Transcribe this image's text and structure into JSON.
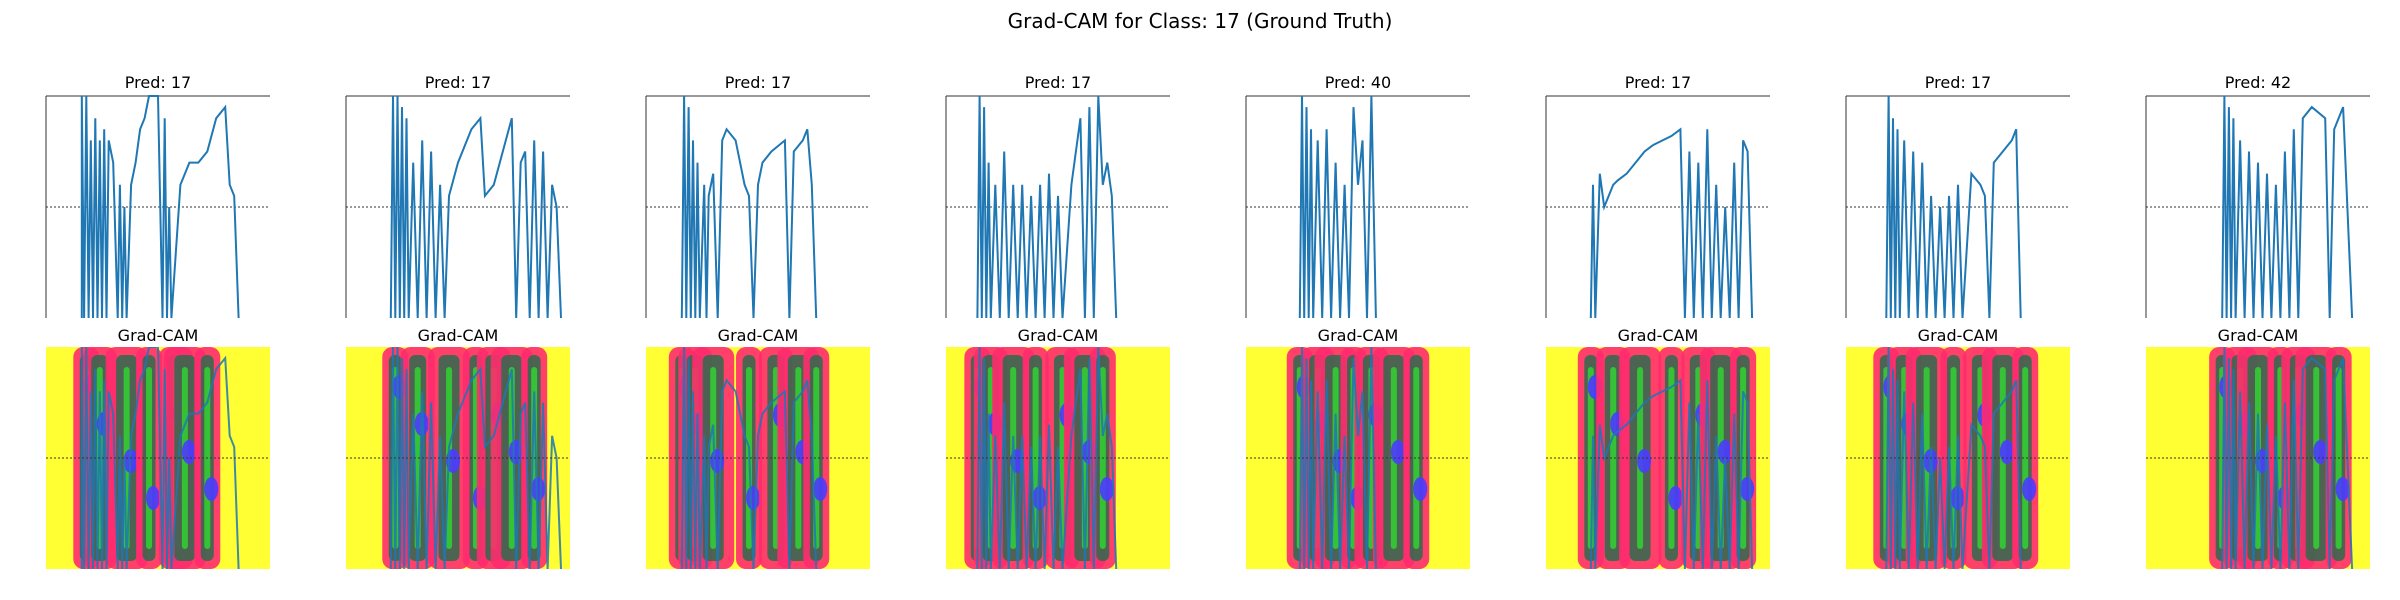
{
  "title": "Grad-CAM for Class: 17 (Ground Truth)",
  "gradcam_label": "Grad-CAM",
  "colors": {
    "signal": "#1f77b4",
    "threshold_line": "#333333",
    "heatmap_low": "#ffff33",
    "heatmap_mid": "#ff2b6e",
    "heatmap_dark": "#2e6b4f",
    "heatmap_green": "#33cc33",
    "heatmap_high": "#4b3bff"
  },
  "chart_data": {
    "type": "line",
    "title": "Grad-CAM for Class: 17 (Ground Truth)",
    "ground_truth_class": 17,
    "reference_line_y": 0.5,
    "ylim": [
      0,
      1
    ],
    "xlim": [
      0,
      1
    ],
    "axes_visible": false,
    "panels": [
      {
        "pred_label": "Pred: 17",
        "signal": [
          [
            0.16,
            0
          ],
          [
            0.16,
            1.0
          ],
          [
            0.17,
            0
          ],
          [
            0.18,
            1.0
          ],
          [
            0.19,
            0
          ],
          [
            0.2,
            0.8
          ],
          [
            0.21,
            0
          ],
          [
            0.22,
            0.9
          ],
          [
            0.23,
            0
          ],
          [
            0.24,
            0.8
          ],
          [
            0.25,
            0
          ],
          [
            0.26,
            0.85
          ],
          [
            0.27,
            0
          ],
          [
            0.28,
            0.8
          ],
          [
            0.3,
            0.7
          ],
          [
            0.32,
            0
          ],
          [
            0.33,
            0.6
          ],
          [
            0.34,
            0
          ],
          [
            0.35,
            0.5
          ],
          [
            0.36,
            0
          ],
          [
            0.38,
            0.6
          ],
          [
            0.4,
            0.7
          ],
          [
            0.42,
            0.85
          ],
          [
            0.44,
            0.9
          ],
          [
            0.46,
            1.0
          ],
          [
            0.5,
            1.0
          ],
          [
            0.52,
            0
          ],
          [
            0.53,
            0.9
          ],
          [
            0.54,
            0
          ],
          [
            0.55,
            0.5
          ],
          [
            0.56,
            0
          ],
          [
            0.6,
            0.6
          ],
          [
            0.62,
            0.65
          ],
          [
            0.64,
            0.7
          ],
          [
            0.66,
            0.7
          ],
          [
            0.68,
            0.7
          ],
          [
            0.72,
            0.75
          ],
          [
            0.76,
            0.9
          ],
          [
            0.8,
            0.95
          ],
          [
            0.82,
            0.6
          ],
          [
            0.84,
            0.55
          ],
          [
            0.86,
            0
          ]
        ],
        "heat_bands": [
          0.18,
          0.24,
          0.36,
          0.46,
          0.58,
          0.62,
          0.72
        ]
      },
      {
        "pred_label": "Pred: 17",
        "signal": [
          [
            0.2,
            0
          ],
          [
            0.21,
            1.0
          ],
          [
            0.22,
            0
          ],
          [
            0.23,
            1.0
          ],
          [
            0.24,
            0
          ],
          [
            0.25,
            0.95
          ],
          [
            0.26,
            0
          ],
          [
            0.27,
            0.9
          ],
          [
            0.28,
            0
          ],
          [
            0.3,
            0.7
          ],
          [
            0.32,
            0
          ],
          [
            0.34,
            0.8
          ],
          [
            0.36,
            0
          ],
          [
            0.38,
            0.75
          ],
          [
            0.4,
            0
          ],
          [
            0.42,
            0.6
          ],
          [
            0.44,
            0
          ],
          [
            0.46,
            0.55
          ],
          [
            0.5,
            0.7
          ],
          [
            0.56,
            0.85
          ],
          [
            0.6,
            0.9
          ],
          [
            0.62,
            0.55
          ],
          [
            0.66,
            0.6
          ],
          [
            0.7,
            0.75
          ],
          [
            0.74,
            0.9
          ],
          [
            0.76,
            0
          ],
          [
            0.78,
            0.7
          ],
          [
            0.8,
            0.75
          ],
          [
            0.82,
            0
          ],
          [
            0.84,
            0.8
          ],
          [
            0.86,
            0
          ],
          [
            0.88,
            0.75
          ],
          [
            0.9,
            0
          ],
          [
            0.92,
            0.6
          ],
          [
            0.94,
            0.5
          ],
          [
            0.96,
            0
          ]
        ],
        "heat_bands": [
          0.22,
          0.32,
          0.46,
          0.58,
          0.66,
          0.74,
          0.84
        ]
      },
      {
        "pred_label": "Pred: 17",
        "signal": [
          [
            0.16,
            0
          ],
          [
            0.17,
            1.0
          ],
          [
            0.18,
            0
          ],
          [
            0.19,
            0.95
          ],
          [
            0.2,
            0
          ],
          [
            0.21,
            0.8
          ],
          [
            0.22,
            0
          ],
          [
            0.23,
            0.7
          ],
          [
            0.24,
            0
          ],
          [
            0.26,
            0.6
          ],
          [
            0.27,
            0
          ],
          [
            0.28,
            0.55
          ],
          [
            0.3,
            0.65
          ],
          [
            0.32,
            0
          ],
          [
            0.34,
            0.8
          ],
          [
            0.36,
            0.85
          ],
          [
            0.4,
            0.8
          ],
          [
            0.44,
            0.6
          ],
          [
            0.46,
            0.55
          ],
          [
            0.48,
            0
          ],
          [
            0.5,
            0.6
          ],
          [
            0.52,
            0.7
          ],
          [
            0.56,
            0.75
          ],
          [
            0.62,
            0.8
          ],
          [
            0.64,
            0
          ],
          [
            0.66,
            0.75
          ],
          [
            0.7,
            0.8
          ],
          [
            0.72,
            0.85
          ],
          [
            0.74,
            0.6
          ],
          [
            0.76,
            0
          ]
        ],
        "heat_bands": [
          0.16,
          0.22,
          0.3,
          0.46,
          0.58,
          0.68,
          0.76
        ]
      },
      {
        "pred_label": "Pred: 17",
        "signal": [
          [
            0.14,
            0
          ],
          [
            0.15,
            1.0
          ],
          [
            0.16,
            0
          ],
          [
            0.17,
            0.95
          ],
          [
            0.18,
            0
          ],
          [
            0.19,
            0.7
          ],
          [
            0.2,
            0
          ],
          [
            0.22,
            0.6
          ],
          [
            0.24,
            0
          ],
          [
            0.26,
            0.75
          ],
          [
            0.28,
            0
          ],
          [
            0.3,
            0.6
          ],
          [
            0.32,
            0
          ],
          [
            0.34,
            0.6
          ],
          [
            0.36,
            0
          ],
          [
            0.38,
            0.55
          ],
          [
            0.4,
            0
          ],
          [
            0.42,
            0.6
          ],
          [
            0.44,
            0
          ],
          [
            0.46,
            0.65
          ],
          [
            0.48,
            0
          ],
          [
            0.5,
            0.55
          ],
          [
            0.52,
            0
          ],
          [
            0.56,
            0.6
          ],
          [
            0.6,
            0.9
          ],
          [
            0.62,
            0
          ],
          [
            0.64,
            0.95
          ],
          [
            0.66,
            0
          ],
          [
            0.68,
            1.0
          ],
          [
            0.7,
            0.6
          ],
          [
            0.72,
            0.7
          ],
          [
            0.74,
            0.55
          ],
          [
            0.76,
            0
          ]
        ],
        "heat_bands": [
          0.14,
          0.2,
          0.3,
          0.4,
          0.52,
          0.62,
          0.7
        ]
      },
      {
        "pred_label": "Pred: 40",
        "signal": [
          [
            0.24,
            0
          ],
          [
            0.25,
            1.0
          ],
          [
            0.26,
            0
          ],
          [
            0.27,
            0.95
          ],
          [
            0.28,
            0
          ],
          [
            0.29,
            0.85
          ],
          [
            0.3,
            0
          ],
          [
            0.32,
            0.8
          ],
          [
            0.34,
            0
          ],
          [
            0.36,
            0.85
          ],
          [
            0.38,
            0
          ],
          [
            0.4,
            0.7
          ],
          [
            0.42,
            0
          ],
          [
            0.44,
            0.6
          ],
          [
            0.46,
            0
          ],
          [
            0.48,
            0.95
          ],
          [
            0.5,
            0.6
          ],
          [
            0.52,
            0.8
          ],
          [
            0.54,
            0
          ],
          [
            0.56,
            1.0
          ],
          [
            0.58,
            0
          ]
        ],
        "heat_bands": [
          0.24,
          0.32,
          0.4,
          0.48,
          0.56,
          0.66,
          0.76
        ]
      },
      {
        "pred_label": "Pred: 17",
        "signal": [
          [
            0.2,
            0
          ],
          [
            0.21,
            0.6
          ],
          [
            0.22,
            0
          ],
          [
            0.24,
            0.65
          ],
          [
            0.26,
            0.5
          ],
          [
            0.28,
            0.55
          ],
          [
            0.3,
            0.6
          ],
          [
            0.32,
            0.62
          ],
          [
            0.36,
            0.65
          ],
          [
            0.4,
            0.7
          ],
          [
            0.44,
            0.75
          ],
          [
            0.48,
            0.78
          ],
          [
            0.52,
            0.8
          ],
          [
            0.56,
            0.82
          ],
          [
            0.6,
            0.85
          ],
          [
            0.62,
            0
          ],
          [
            0.64,
            0.75
          ],
          [
            0.66,
            0
          ],
          [
            0.68,
            0.7
          ],
          [
            0.7,
            0
          ],
          [
            0.72,
            0.85
          ],
          [
            0.74,
            0
          ],
          [
            0.76,
            0.6
          ],
          [
            0.78,
            0
          ],
          [
            0.8,
            0.5
          ],
          [
            0.82,
            0
          ],
          [
            0.84,
            0.7
          ],
          [
            0.86,
            0
          ],
          [
            0.88,
            0.8
          ],
          [
            0.9,
            0.75
          ],
          [
            0.92,
            0
          ]
        ],
        "heat_bands": [
          0.2,
          0.3,
          0.42,
          0.56,
          0.68,
          0.78,
          0.88
        ]
      },
      {
        "pred_label": "Pred: 17",
        "signal": [
          [
            0.18,
            0
          ],
          [
            0.19,
            1.0
          ],
          [
            0.2,
            0
          ],
          [
            0.21,
            0.9
          ],
          [
            0.22,
            0
          ],
          [
            0.23,
            0.85
          ],
          [
            0.24,
            0
          ],
          [
            0.26,
            0.8
          ],
          [
            0.28,
            0
          ],
          [
            0.3,
            0.75
          ],
          [
            0.32,
            0
          ],
          [
            0.34,
            0.7
          ],
          [
            0.36,
            0
          ],
          [
            0.38,
            0.55
          ],
          [
            0.4,
            0
          ],
          [
            0.42,
            0.5
          ],
          [
            0.44,
            0
          ],
          [
            0.46,
            0.55
          ],
          [
            0.48,
            0
          ],
          [
            0.5,
            0.6
          ],
          [
            0.52,
            0
          ],
          [
            0.56,
            0.65
          ],
          [
            0.6,
            0.6
          ],
          [
            0.62,
            0.55
          ],
          [
            0.64,
            0
          ],
          [
            0.66,
            0.7
          ],
          [
            0.7,
            0.75
          ],
          [
            0.74,
            0.8
          ],
          [
            0.76,
            0.85
          ],
          [
            0.78,
            0
          ]
        ],
        "heat_bands": [
          0.18,
          0.26,
          0.36,
          0.48,
          0.6,
          0.7,
          0.8
        ]
      },
      {
        "pred_label": "Pred: 42",
        "signal": [
          [
            0.34,
            0
          ],
          [
            0.35,
            1.0
          ],
          [
            0.36,
            0
          ],
          [
            0.37,
            0.95
          ],
          [
            0.38,
            0
          ],
          [
            0.39,
            0.9
          ],
          [
            0.4,
            0
          ],
          [
            0.42,
            0.8
          ],
          [
            0.44,
            0
          ],
          [
            0.46,
            0.75
          ],
          [
            0.48,
            0
          ],
          [
            0.5,
            0.7
          ],
          [
            0.52,
            0
          ],
          [
            0.54,
            0.65
          ],
          [
            0.56,
            0
          ],
          [
            0.58,
            0.6
          ],
          [
            0.6,
            0
          ],
          [
            0.62,
            0.75
          ],
          [
            0.64,
            0
          ],
          [
            0.66,
            0.85
          ],
          [
            0.68,
            0
          ],
          [
            0.7,
            0.9
          ],
          [
            0.74,
            0.95
          ],
          [
            0.8,
            0.9
          ],
          [
            0.82,
            0
          ],
          [
            0.84,
            0.85
          ],
          [
            0.88,
            0.95
          ],
          [
            0.92,
            0
          ]
        ],
        "heat_bands": [
          0.34,
          0.42,
          0.5,
          0.6,
          0.68,
          0.76,
          0.86
        ]
      }
    ]
  }
}
